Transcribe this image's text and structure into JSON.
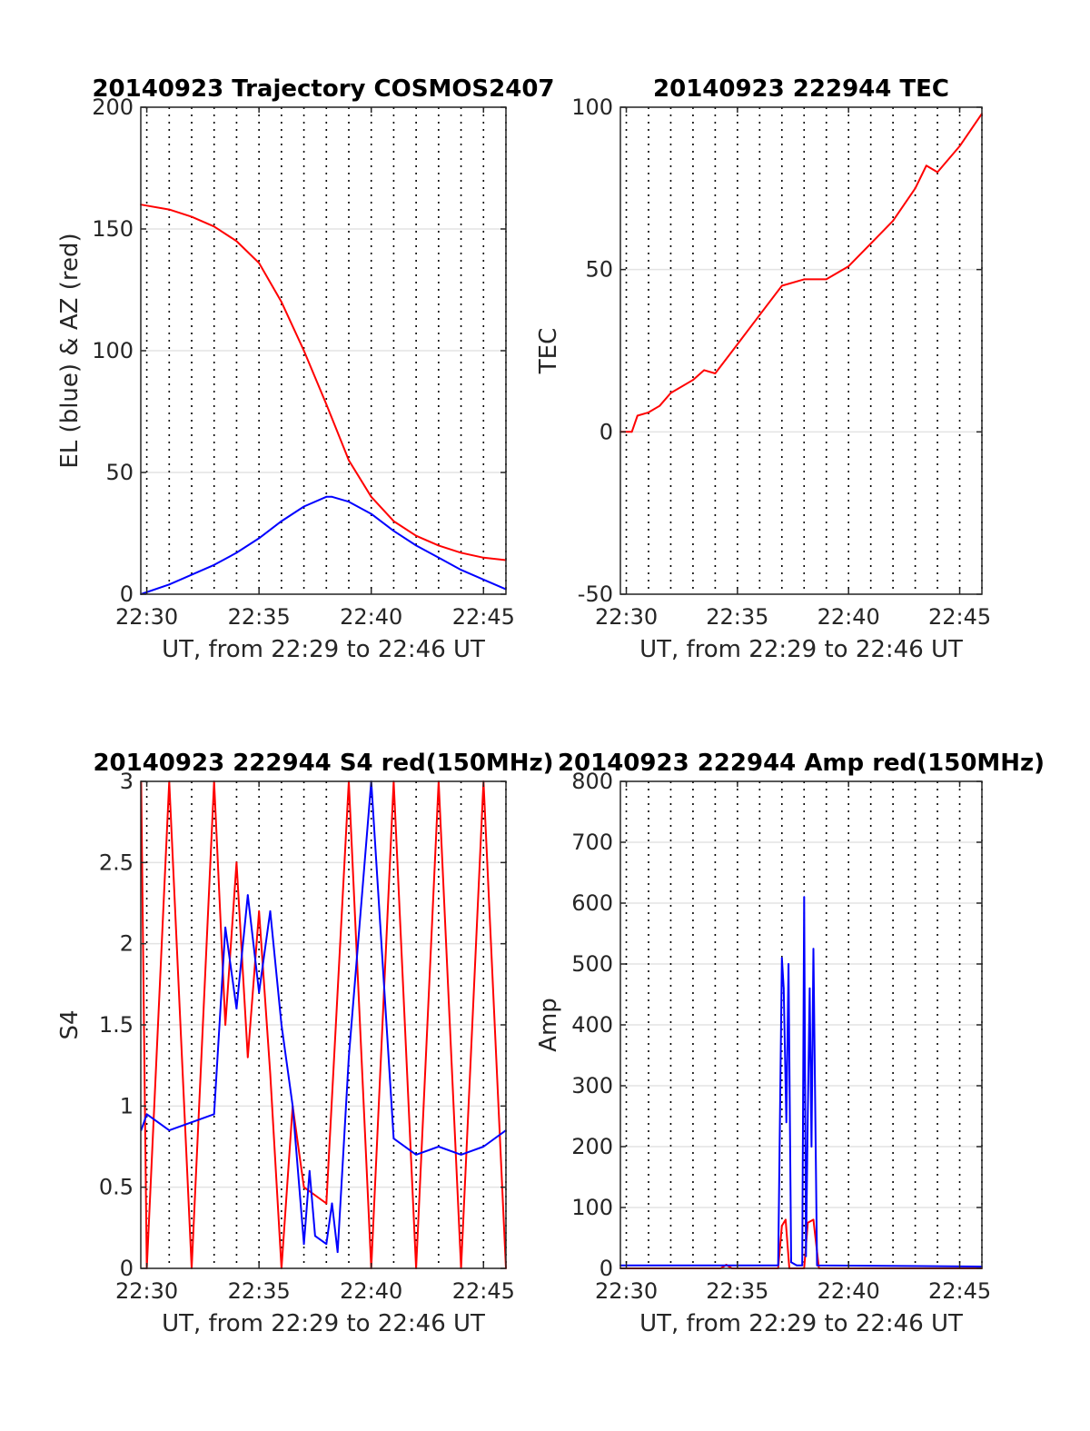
{
  "chart_data": [
    {
      "type": "line",
      "title": "20140923 Trajectory COSMOS2407",
      "xlabel": "UT, from 22:29 to 22:46 UT",
      "ylabel": "EL (blue) & AZ (red)",
      "xlim": [
        "22:29:44",
        "22:46:00"
      ],
      "ylim": [
        0,
        200
      ],
      "x_ticks": [
        "22:30",
        "22:35",
        "22:40",
        "22:45"
      ],
      "y_ticks": [
        "0",
        "50",
        "100",
        "150",
        "200"
      ],
      "grid": true,
      "minute_gridlines": "dotted",
      "x_unit": "UT",
      "series": [
        {
          "color": "#ff0000",
          "x": [
            "22:29:44",
            "22:31",
            "22:32",
            "22:33",
            "22:34",
            "22:35",
            "22:36",
            "22:37",
            "22:38",
            "22:39",
            "22:40",
            "22:41",
            "22:42",
            "22:43",
            "22:44",
            "22:45",
            "22:46"
          ],
          "values": [
            160,
            158,
            155,
            151,
            145,
            136,
            120,
            100,
            78,
            55,
            40,
            30,
            24,
            20,
            17,
            15,
            14
          ]
        },
        {
          "color": "#0000ff",
          "x": [
            "22:29:44",
            "22:31",
            "22:32",
            "22:33",
            "22:34",
            "22:35",
            "22:36",
            "22:37",
            "22:38",
            "22:38:15",
            "22:39",
            "22:40",
            "22:41",
            "22:42",
            "22:43",
            "22:44",
            "22:45",
            "22:46"
          ],
          "values": [
            0,
            4,
            8,
            12,
            17,
            23,
            30,
            36,
            40,
            40,
            38,
            33,
            26,
            20,
            15,
            10,
            6,
            2
          ]
        }
      ]
    },
    {
      "type": "line",
      "title": "20140923 222944 TEC",
      "xlabel": "UT, from 22:29 to 22:46 UT",
      "ylabel": "TEC",
      "xlim": [
        "22:29:44",
        "22:46:00"
      ],
      "ylim": [
        -50,
        100
      ],
      "x_ticks": [
        "22:30",
        "22:35",
        "22:40",
        "22:45"
      ],
      "y_ticks": [
        "-50",
        "0",
        "50",
        "100"
      ],
      "grid": true,
      "minute_gridlines": "dotted",
      "series": [
        {
          "color": "#ff0000",
          "x": [
            "22:29:44",
            "22:30:15",
            "22:30:30",
            "22:31",
            "22:31:30",
            "22:32",
            "22:33",
            "22:33:30",
            "22:34",
            "22:35",
            "22:36",
            "22:37",
            "22:38",
            "22:39",
            "22:40",
            "22:41",
            "22:42",
            "22:43",
            "22:43:30",
            "22:44",
            "22:45",
            "22:46"
          ],
          "values": [
            0,
            0,
            5,
            6,
            8,
            12,
            16,
            19,
            18,
            27,
            36,
            45,
            47,
            47,
            51,
            58,
            65,
            75,
            82,
            80,
            88,
            98
          ]
        }
      ]
    },
    {
      "type": "line",
      "title": "20140923 222944 S4 red(150MHz)",
      "xlabel": "UT, from 22:29 to 22:46 UT",
      "ylabel": "S4",
      "xlim": [
        "22:29:44",
        "22:46:00"
      ],
      "ylim": [
        0,
        3
      ],
      "x_ticks": [
        "22:30",
        "22:35",
        "22:40",
        "22:45"
      ],
      "y_ticks": [
        "0",
        "0.5",
        "1",
        "1.5",
        "2",
        "2.5",
        "3"
      ],
      "grid": true,
      "minute_gridlines": "dotted",
      "series": [
        {
          "color": "#ff0000",
          "x": [
            "22:29:45",
            "22:30",
            "22:31",
            "22:32",
            "22:33",
            "22:33:30",
            "22:34",
            "22:34:30",
            "22:35",
            "22:35:30",
            "22:36",
            "22:36:30",
            "22:37",
            "22:38",
            "22:39",
            "22:40",
            "22:41",
            "22:42",
            "22:43",
            "22:44",
            "22:45",
            "22:46"
          ],
          "values": [
            3,
            0,
            3,
            0,
            3,
            1.5,
            2.5,
            1.3,
            2.2,
            1.2,
            0,
            1.0,
            0.5,
            0.4,
            3,
            0,
            3,
            0,
            3,
            0,
            3,
            0
          ]
        },
        {
          "color": "#0000ff",
          "x": [
            "22:29:45",
            "22:30",
            "22:31",
            "22:32",
            "22:33",
            "22:33:30",
            "22:34",
            "22:34:30",
            "22:35",
            "22:35:30",
            "22:36",
            "22:36:30",
            "22:37",
            "22:37:15",
            "22:37:30",
            "22:38",
            "22:38:15",
            "22:38:30",
            "22:39",
            "22:40",
            "22:41",
            "22:42",
            "22:43",
            "22:44",
            "22:45",
            "22:46"
          ],
          "values": [
            0.85,
            0.95,
            0.85,
            0.9,
            0.95,
            2.1,
            1.6,
            2.3,
            1.7,
            2.2,
            1.5,
            1.0,
            0.15,
            0.6,
            0.2,
            0.15,
            0.4,
            0.1,
            1.3,
            3,
            0.8,
            0.7,
            0.75,
            0.7,
            0.75,
            0.85
          ]
        }
      ]
    },
    {
      "type": "line",
      "title": "20140923 222944 Amp red(150MHz)",
      "xlabel": "UT, from 22:29 to 22:46 UT",
      "ylabel": "Amp",
      "xlim": [
        "22:29:44",
        "22:46:00"
      ],
      "ylim": [
        0,
        800
      ],
      "x_ticks": [
        "22:30",
        "22:35",
        "22:40",
        "22:45"
      ],
      "y_ticks": [
        "0",
        "100",
        "200",
        "300",
        "400",
        "500",
        "600",
        "700",
        "800"
      ],
      "grid": true,
      "minute_gridlines": "dotted",
      "series": [
        {
          "color": "#ff0000",
          "x": [
            "22:29:44",
            "22:34:15",
            "22:34:30",
            "22:34:45",
            "22:36:50",
            "22:37:00",
            "22:37:10",
            "22:37:20",
            "22:37:40",
            "22:38:00",
            "22:38:10",
            "22:38:25",
            "22:38:40",
            "22:46"
          ],
          "values": [
            0,
            0,
            6,
            0,
            0,
            70,
            80,
            0,
            0,
            0,
            75,
            80,
            0,
            0
          ]
        },
        {
          "color": "#0000ff",
          "x": [
            "22:29:44",
            "22:36:50",
            "22:37:00",
            "22:37:05",
            "22:37:12",
            "22:37:18",
            "22:37:25",
            "22:37:40",
            "22:37:55",
            "22:38:00",
            "22:38:05",
            "22:38:10",
            "22:38:15",
            "22:38:20",
            "22:38:25",
            "22:38:35",
            "22:46"
          ],
          "values": [
            5,
            5,
            510,
            460,
            240,
            500,
            10,
            5,
            5,
            610,
            20,
            250,
            460,
            200,
            525,
            5,
            3
          ]
        }
      ]
    }
  ]
}
